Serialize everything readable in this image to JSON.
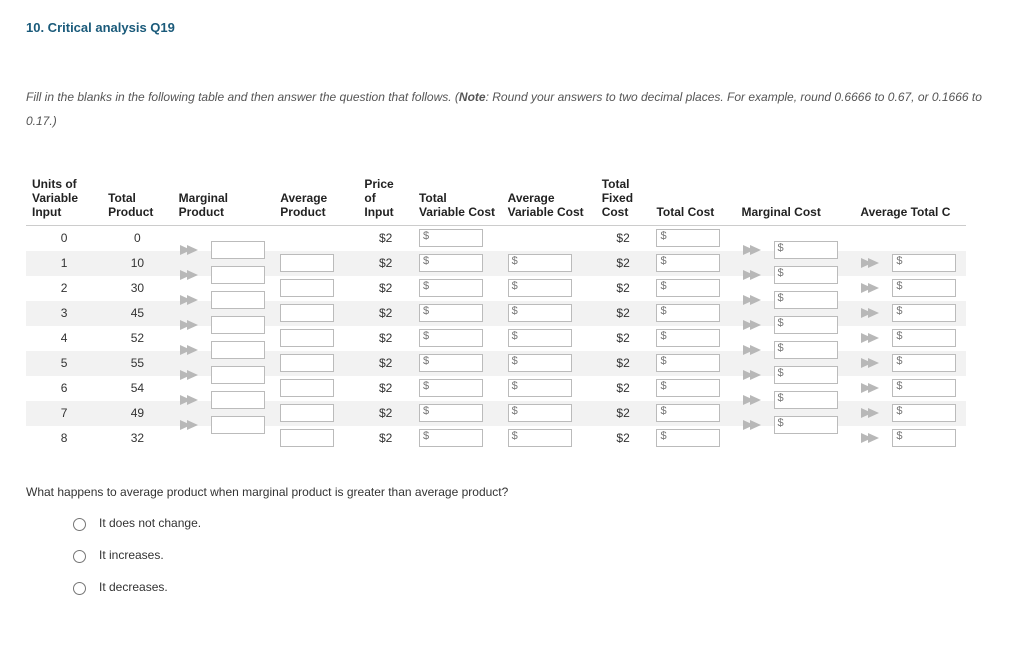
{
  "heading": "10. Critical analysis Q19",
  "prompt_pre": "Fill in the blanks in the following table and then answer the question that follows. (",
  "prompt_note": "Note",
  "prompt_post": ": Round your answers to two decimal places. For example, round 0.6666 to 0.67, or 0.1666 to 0.17.)",
  "columns": {
    "units": "Units of Variable Input",
    "tp": "Total Product",
    "mp": "Marginal Product",
    "ap": "Average Product",
    "price": "Price of Input",
    "tvc": "Total Variable Cost",
    "avc": "Average Variable Cost",
    "tfc": "Total Fixed Cost",
    "tc": "Total Cost",
    "mc": "Marginal Cost",
    "atc": "Average Total C"
  },
  "rows": [
    {
      "units": "0",
      "tp": "0",
      "price": "$2",
      "tfc": "$2"
    },
    {
      "units": "1",
      "tp": "10",
      "price": "$2",
      "tfc": "$2"
    },
    {
      "units": "2",
      "tp": "30",
      "price": "$2",
      "tfc": "$2"
    },
    {
      "units": "3",
      "tp": "45",
      "price": "$2",
      "tfc": "$2"
    },
    {
      "units": "4",
      "tp": "52",
      "price": "$2",
      "tfc": "$2"
    },
    {
      "units": "5",
      "tp": "55",
      "price": "$2",
      "tfc": "$2"
    },
    {
      "units": "6",
      "tp": "54",
      "price": "$2",
      "tfc": "$2"
    },
    {
      "units": "7",
      "tp": "49",
      "price": "$2",
      "tfc": "$2"
    },
    {
      "units": "8",
      "tp": "32",
      "price": "$2",
      "tfc": "$2"
    }
  ],
  "dollar": "$",
  "question": "What happens to average product when marginal product is greater than average product?",
  "options": [
    "It does not change.",
    "It increases.",
    "It decreases."
  ],
  "colors": {
    "heading": "#1a5a7a",
    "shade": "#f2f2f2",
    "border": "#cccccc",
    "arrow": "#b8b8b8"
  }
}
